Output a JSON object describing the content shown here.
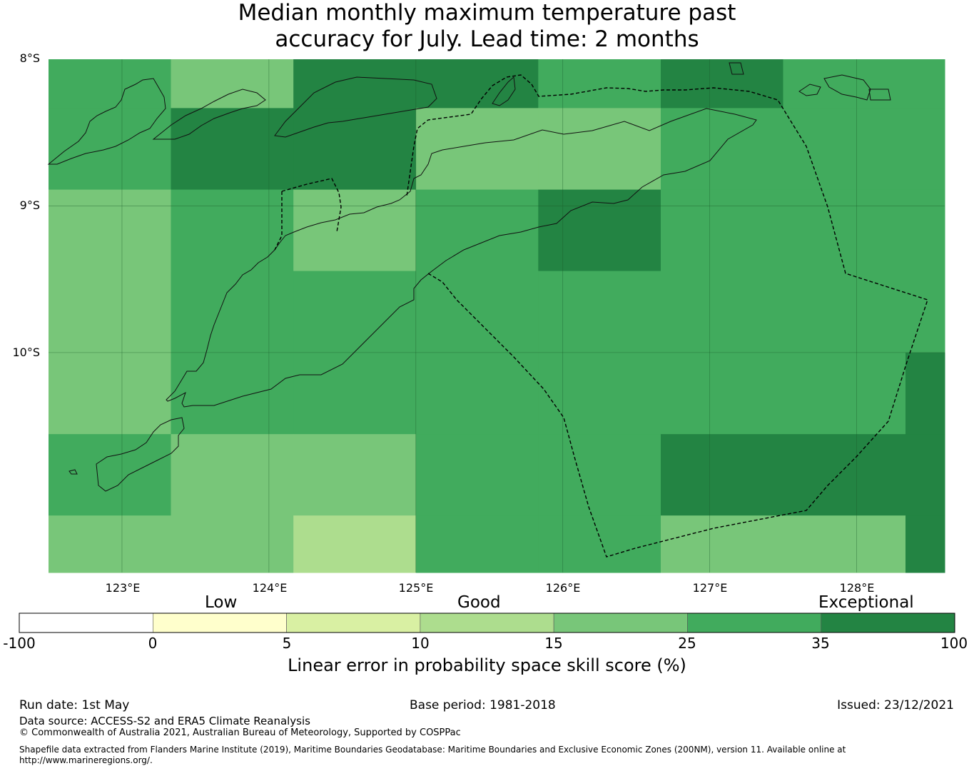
{
  "title": {
    "line1": "Median monthly maximum temperature past",
    "line2": "accuracy for July. Lead time: 2 months"
  },
  "map": {
    "lat_labels": [
      "8°S",
      "9°S",
      "10°S"
    ],
    "lon_labels": [
      "123°E",
      "124°E",
      "125°E",
      "126°E",
      "127°E",
      "128°E"
    ],
    "lon_range": [
      122.5,
      128.6
    ],
    "lat_range": [
      -8.0,
      -11.5
    ],
    "grid_lon_edges": [
      122.5,
      123.333,
      124.167,
      125.0,
      125.833,
      126.667,
      127.5,
      128.333,
      128.6
    ],
    "grid_lat_edges": [
      -8.0,
      -8.333,
      -8.889,
      -9.444,
      -10.0,
      -10.556,
      -11.111,
      -11.5
    ],
    "skill_class_grid": [
      [
        5,
        4,
        6,
        6,
        5,
        6,
        5,
        5
      ],
      [
        5,
        6,
        6,
        4,
        4,
        5,
        5,
        5
      ],
      [
        4,
        5,
        4,
        5,
        6,
        5,
        5,
        5
      ],
      [
        4,
        5,
        5,
        5,
        5,
        5,
        5,
        5
      ],
      [
        4,
        5,
        5,
        5,
        5,
        5,
        5,
        6
      ],
      [
        5,
        4,
        4,
        5,
        5,
        6,
        6,
        6
      ],
      [
        4,
        4,
        3,
        5,
        5,
        4,
        4,
        6
      ]
    ]
  },
  "colorbar": {
    "categories": [
      "Low",
      "Good",
      "Exceptional"
    ],
    "ticks": [
      "-100",
      "0",
      "5",
      "10",
      "15",
      "25",
      "35",
      "100"
    ],
    "colors": [
      "#ffffff",
      "#ffffcc",
      "#d9f0a3",
      "#addd8e",
      "#78c679",
      "#41ab5d",
      "#238443"
    ],
    "label": "Linear error in probability space skill score (%)"
  },
  "footer": {
    "run_date": "Run date: 1st May",
    "base_period": "Base period: 1981-2018",
    "issued": "Issued: 23/12/2021",
    "data_source": "Data source: ACCESS-S2 and ERA5 Climate Reanalysis",
    "copyright": "© Commonwealth of Australia 2021, Australian Bureau of Meteorology, Supported by COSPPac",
    "shapefile_line1": "Shapefile data extracted from Flanders Marine Institute (2019), Maritime Boundaries Geodatabase: Maritime Boundaries and Exclusive Economic Zones (200NM), version 11. Available online at",
    "shapefile_line2": "http://www.marineregions.org/."
  }
}
